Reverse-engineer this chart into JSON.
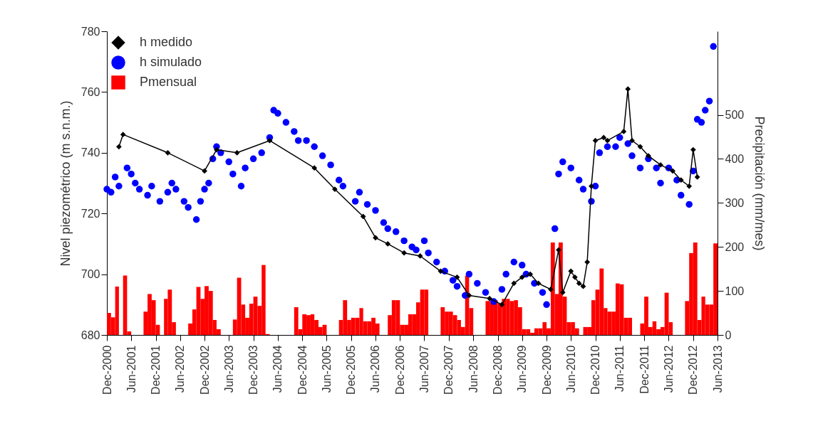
{
  "chart_data": {
    "type": "line",
    "ylabel": "Nivel piezométrico (m s.n.m.)",
    "y2label": "Precipitación (mm/mes)",
    "x": [
      "2000-12",
      "2001-01",
      "2001-02",
      "2001-03",
      "2001-04",
      "2001-05",
      "2001-06",
      "2001-07",
      "2001-08",
      "2001-09",
      "2001-10",
      "2001-11",
      "2001-12",
      "2002-01",
      "2002-02",
      "2002-03",
      "2002-04",
      "2002-05",
      "2002-06",
      "2002-07",
      "2002-08",
      "2002-09",
      "2002-10",
      "2002-11",
      "2002-12",
      "2003-01",
      "2003-02",
      "2003-03",
      "2003-04",
      "2003-05",
      "2003-06",
      "2003-07",
      "2003-08",
      "2003-09",
      "2003-10",
      "2003-11",
      "2003-12",
      "2004-01",
      "2004-02",
      "2004-03",
      "2004-04",
      "2004-05",
      "2004-06",
      "2004-07",
      "2004-08",
      "2004-09",
      "2004-10",
      "2004-11",
      "2004-12",
      "2005-01",
      "2005-02",
      "2005-03",
      "2005-04",
      "2005-05",
      "2005-06",
      "2005-07",
      "2005-08",
      "2005-09",
      "2005-10",
      "2005-11",
      "2005-12",
      "2006-01",
      "2006-02",
      "2006-03",
      "2006-04",
      "2006-05",
      "2006-06",
      "2006-07",
      "2006-08",
      "2006-09",
      "2006-10",
      "2006-11",
      "2006-12",
      "2007-01",
      "2007-02",
      "2007-03",
      "2007-04",
      "2007-05",
      "2007-06",
      "2007-07",
      "2007-08",
      "2007-09",
      "2007-10",
      "2007-11",
      "2007-12",
      "2008-01",
      "2008-02",
      "2008-03",
      "2008-04",
      "2008-05",
      "2008-06",
      "2008-07",
      "2008-08",
      "2008-09",
      "2008-10",
      "2008-11",
      "2008-12",
      "2009-01",
      "2009-02",
      "2009-03",
      "2009-04",
      "2009-05",
      "2009-06",
      "2009-07",
      "2009-08",
      "2009-09",
      "2009-10",
      "2009-11",
      "2009-12",
      "2010-01",
      "2010-02",
      "2010-03",
      "2010-04",
      "2010-05",
      "2010-06",
      "2010-07",
      "2010-08",
      "2010-09",
      "2010-10",
      "2010-11",
      "2010-12",
      "2011-01",
      "2011-02",
      "2011-03",
      "2011-04",
      "2011-05",
      "2011-06",
      "2011-07",
      "2011-08",
      "2011-09",
      "2011-10",
      "2011-11",
      "2011-12",
      "2012-01",
      "2012-02",
      "2012-03",
      "2012-04",
      "2012-05",
      "2012-06",
      "2012-07",
      "2012-08",
      "2012-09",
      "2012-10",
      "2012-11",
      "2012-12",
      "2013-01",
      "2013-02",
      "2013-03",
      "2013-04",
      "2013-05"
    ],
    "series": [
      {
        "name": "h medido",
        "color": "#000000",
        "marker": "diamond",
        "x": [
          "2001-03",
          "2001-04",
          "2002-03",
          "2002-12",
          "2003-03",
          "2003-08",
          "2004-04",
          "2005-03",
          "2005-08",
          "2006-03",
          "2006-06",
          "2006-09",
          "2007-01",
          "2007-05",
          "2007-10",
          "2008-02",
          "2008-05",
          "2008-10",
          "2009-01",
          "2009-04",
          "2009-06",
          "2009-08",
          "2009-10",
          "2010-01",
          "2010-03",
          "2010-04",
          "2010-06",
          "2010-07",
          "2010-08",
          "2010-09",
          "2010-10",
          "2010-11",
          "2010-12",
          "2011-02",
          "2011-03",
          "2011-07",
          "2011-08",
          "2011-09",
          "2011-11",
          "2012-01",
          "2012-04",
          "2012-07",
          "2012-09",
          "2012-11",
          "2012-12",
          "2013-01"
        ],
        "values": [
          742,
          746,
          740,
          734,
          741,
          740,
          744,
          735,
          728,
          719,
          712,
          710,
          707,
          706,
          701,
          699,
          693,
          692,
          690,
          697,
          699,
          700,
          697,
          695,
          708,
          694,
          701,
          699,
          697,
          696,
          704,
          729,
          744,
          745,
          744,
          747,
          761,
          744,
          742,
          739,
          736,
          734,
          731,
          729,
          741,
          732
        ]
      },
      {
        "name": "h simulado",
        "type": "scatter",
        "color": "#0000ff",
        "marker": "circle",
        "x": [
          "2000-12",
          "2001-01",
          "2001-02",
          "2001-03",
          "2001-05",
          "2001-06",
          "2001-07",
          "2001-08",
          "2001-10",
          "2001-11",
          "2002-01",
          "2002-03",
          "2002-04",
          "2002-05",
          "2002-07",
          "2002-08",
          "2002-10",
          "2002-11",
          "2002-12",
          "2003-01",
          "2003-02",
          "2003-03",
          "2003-04",
          "2003-06",
          "2003-07",
          "2003-09",
          "2003-10",
          "2003-12",
          "2004-02",
          "2004-04",
          "2004-05",
          "2004-06",
          "2004-08",
          "2004-10",
          "2004-11",
          "2005-01",
          "2005-03",
          "2005-05",
          "2005-07",
          "2005-09",
          "2005-10",
          "2006-01",
          "2006-02",
          "2006-04",
          "2006-06",
          "2006-08",
          "2006-09",
          "2006-11",
          "2007-01",
          "2007-03",
          "2007-04",
          "2007-06",
          "2007-07",
          "2007-09",
          "2007-11",
          "2008-01",
          "2008-02",
          "2008-04",
          "2008-05",
          "2008-07",
          "2008-09",
          "2008-11",
          "2009-01",
          "2009-02",
          "2009-04",
          "2009-06",
          "2009-07",
          "2009-09",
          "2009-11",
          "2009-12",
          "2010-02",
          "2010-03",
          "2010-04",
          "2010-06",
          "2010-08",
          "2010-09",
          "2010-11",
          "2010-12",
          "2011-01",
          "2011-03",
          "2011-05",
          "2011-06",
          "2011-08",
          "2011-09",
          "2011-11",
          "2012-01",
          "2012-03",
          "2012-04",
          "2012-06",
          "2012-08",
          "2012-09",
          "2012-11",
          "2012-12",
          "2013-01",
          "2013-02",
          "2013-03",
          "2013-04",
          "2013-05"
        ],
        "values": [
          728,
          727,
          732,
          729,
          735,
          733,
          730,
          728,
          726,
          729,
          724,
          727,
          730,
          728,
          724,
          722,
          718,
          724,
          728,
          730,
          738,
          742,
          740,
          737,
          733,
          729,
          735,
          738,
          740,
          745,
          754,
          753,
          750,
          747,
          744,
          744,
          742,
          739,
          736,
          731,
          729,
          724,
          727,
          723,
          721,
          717,
          715,
          714,
          711,
          709,
          708,
          711,
          707,
          704,
          701,
          698,
          696,
          693,
          700,
          697,
          694,
          691,
          695,
          700,
          704,
          703,
          700,
          697,
          694,
          690,
          715,
          733,
          737,
          735,
          731,
          728,
          724,
          729,
          740,
          742,
          742,
          745,
          743,
          739,
          735,
          738,
          735,
          730,
          735,
          731,
          726,
          723,
          734,
          751,
          750,
          754,
          757,
          775
        ]
      },
      {
        "name": "Pmensual",
        "type": "bar",
        "axis": "y2",
        "color": "#ff0000",
        "values": [
          50,
          40,
          110,
          0,
          135,
          8,
          0,
          0,
          0,
          53,
          93,
          79,
          23,
          0,
          82,
          103,
          29,
          0,
          0,
          0,
          26,
          58,
          109,
          82,
          111,
          100,
          34,
          13,
          0,
          0,
          0,
          35,
          130,
          69,
          39,
          71,
          87,
          66,
          159,
          2,
          0,
          0,
          0,
          0,
          0,
          0,
          63,
          13,
          47,
          45,
          47,
          34,
          18,
          23,
          0,
          0,
          0,
          34,
          79,
          34,
          39,
          39,
          61,
          31,
          31,
          39,
          26,
          0,
          0,
          45,
          79,
          79,
          23,
          23,
          47,
          47,
          74,
          103,
          103,
          0,
          0,
          0,
          63,
          53,
          53,
          45,
          34,
          18,
          135,
          61,
          0,
          0,
          0,
          77,
          77,
          79,
          71,
          82,
          82,
          77,
          79,
          63,
          13,
          13,
          5,
          15,
          15,
          29,
          15,
          210,
          93,
          210,
          87,
          29,
          29,
          15,
          0,
          18,
          18,
          79,
          103,
          151,
          61,
          53,
          53,
          117,
          115,
          39,
          39,
          0,
          0,
          26,
          87,
          18,
          31,
          13,
          18,
          96,
          29,
          0,
          0,
          0,
          77,
          186,
          210,
          34,
          87,
          69,
          69,
          208
        ]
      }
    ],
    "xlim": [
      "2000-12",
      "2013-06"
    ],
    "xticks": [
      {
        "value": "2000-12",
        "label": "Dec-2000"
      },
      {
        "value": "2001-06",
        "label": "Jun-2001"
      },
      {
        "value": "2001-12",
        "label": "Dec-2001"
      },
      {
        "value": "2002-06",
        "label": "Jun-2002"
      },
      {
        "value": "2002-12",
        "label": "Dec-2002"
      },
      {
        "value": "2003-06",
        "label": "Jun-2003"
      },
      {
        "value": "2003-12",
        "label": "Dec-2003"
      },
      {
        "value": "2004-06",
        "label": "Jun-2004"
      },
      {
        "value": "2004-12",
        "label": "Dec-2004"
      },
      {
        "value": "2005-06",
        "label": "Jun-2005"
      },
      {
        "value": "2005-12",
        "label": "Dec-2005"
      },
      {
        "value": "2006-06",
        "label": "Jun-2006"
      },
      {
        "value": "2006-12",
        "label": "Dec-2006"
      },
      {
        "value": "2007-06",
        "label": "Jun-2007"
      },
      {
        "value": "2007-12",
        "label": "Dec-2007"
      },
      {
        "value": "2008-06",
        "label": "Jun-2008"
      },
      {
        "value": "2008-12",
        "label": "Dec-2008"
      },
      {
        "value": "2009-06",
        "label": "Jun-2009"
      },
      {
        "value": "2009-12",
        "label": "Dec-2009"
      },
      {
        "value": "2010-06",
        "label": "Jun-2010"
      },
      {
        "value": "2010-12",
        "label": "Dec-2010"
      },
      {
        "value": "2011-06",
        "label": "Jun-2011"
      },
      {
        "value": "2011-12",
        "label": "Dec-2011"
      },
      {
        "value": "2012-06",
        "label": "Jun-2012"
      },
      {
        "value": "2012-12",
        "label": "Dec-2012"
      },
      {
        "value": "2013-06",
        "label": "Jun-2013"
      }
    ],
    "ylim": [
      680,
      780
    ],
    "yticks": [
      680,
      700,
      720,
      740,
      760,
      780
    ],
    "y2lim": [
      0,
      690
    ],
    "y2ticks": [
      0,
      100,
      200,
      300,
      400,
      500
    ],
    "legend": "top left"
  }
}
